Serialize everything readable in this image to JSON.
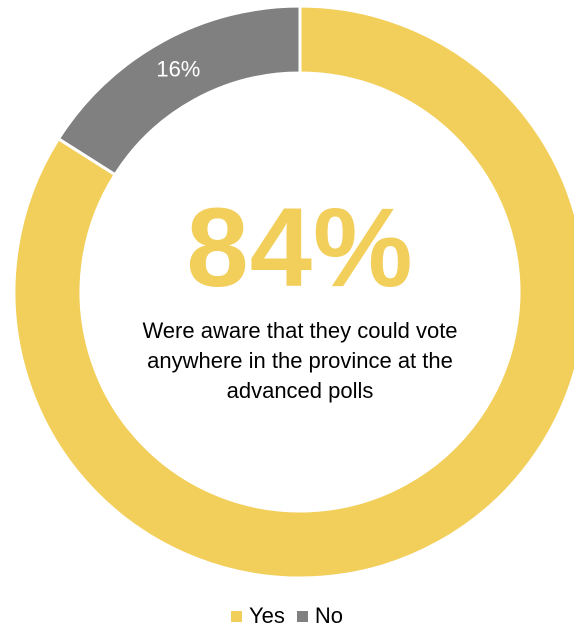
{
  "chart_data": {
    "type": "pie",
    "variant": "donut",
    "categories": [
      "Yes",
      "No"
    ],
    "values": [
      84,
      16
    ],
    "data_labels": [
      "84%",
      "16%"
    ],
    "colors": [
      "#F2CE5B",
      "#808080"
    ],
    "center_value": "84%",
    "center_caption": "Were aware that they could vote anywhere in the province at the advanced polls",
    "legend_position": "bottom"
  },
  "legend": [
    {
      "label": "Yes",
      "color": "#F2CE5B"
    },
    {
      "label": "No",
      "color": "#808080"
    }
  ]
}
